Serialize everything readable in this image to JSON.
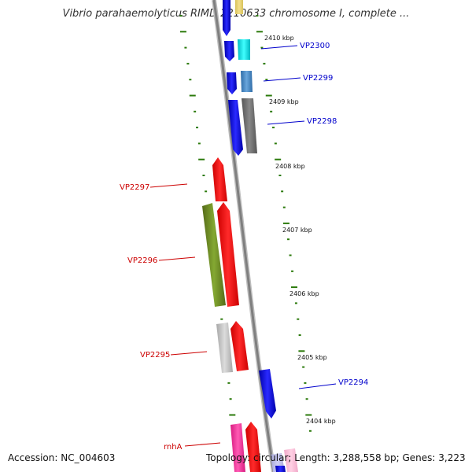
{
  "title": "Vibrio parahaemolyticus RIMD 2210633 chromosome I, complete ...",
  "footer": {
    "accession": "Accession: NC_004603",
    "summary": "Topology: circular; Length: 3,288,558 bp; Genes: 3,223"
  },
  "colors": {
    "backbone": "#8a8a8a",
    "tick": "#2b7a0b",
    "forward_label": "#0000cc",
    "reverse_label": "#cc0000"
  },
  "kbp_labels": [
    "2410 kbp",
    "2409 kbp",
    "2408 kbp",
    "2407 kbp",
    "2406 kbp",
    "2405 kbp",
    "2404 kbp"
  ],
  "genes": [
    {
      "name": "VP2300",
      "color": "#00e0e0",
      "strand": "forward"
    },
    {
      "name": "VP2299",
      "color": "#4a8ac8",
      "strand": "forward"
    },
    {
      "name": "VP2298",
      "color": "#6e6e6e",
      "strand": "forward"
    },
    {
      "name": "VP2297",
      "color": "#ff1a1a",
      "strand": "reverse"
    },
    {
      "name": "VP2296",
      "color": "#6f8f22",
      "strand": "reverse"
    },
    {
      "name": "VP2295",
      "color": "#c8c8c8",
      "strand": "reverse"
    },
    {
      "name": "VP2294",
      "color": "#1a1aee",
      "strand": "forward"
    },
    {
      "name": "rnhA",
      "color": "#ff3fa0",
      "strand": "reverse"
    }
  ]
}
